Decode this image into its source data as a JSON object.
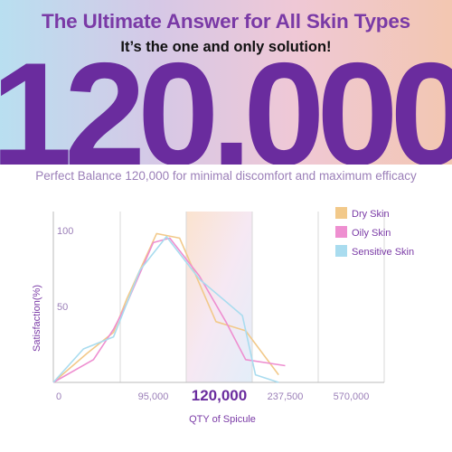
{
  "header": {
    "headline": "The Ultimate Answer for All Skin Types",
    "subheadline": "It’s the one and only solution!",
    "big_number": "120,000",
    "tagline": "Perfect Balance 120,000 for minimal discomfort and maximum efficacy"
  },
  "colors": {
    "accent": "#6a2c9e",
    "dry": "#f2c98a",
    "oily": "#ee8fd0",
    "sensitive": "#a9dcef"
  },
  "chart_data": {
    "type": "line",
    "title": "",
    "xlabel": "QTY of Spicule",
    "ylabel": "Satisfaction(%)",
    "x_categories": [
      "0",
      "95,000",
      "120,000",
      "237,500",
      "570,000"
    ],
    "highlight_category": "120,000",
    "ylim": [
      0,
      100
    ],
    "yticks": [
      "50",
      "100"
    ],
    "legend_position": "top-right",
    "series": [
      {
        "name": "Dry Skin",
        "color": "#f2c98a",
        "points": [
          [
            0,
            0
          ],
          [
            0.5,
            19
          ],
          [
            0.9,
            33
          ],
          [
            1.1,
            55
          ],
          [
            1.55,
            98
          ],
          [
            1.9,
            95
          ],
          [
            2.3,
            55
          ],
          [
            2.45,
            40
          ],
          [
            2.9,
            34
          ],
          [
            3.4,
            5
          ]
        ]
      },
      {
        "name": "Oily Skin",
        "color": "#ee8fd0",
        "points": [
          [
            0,
            0
          ],
          [
            0.6,
            15
          ],
          [
            0.9,
            35
          ],
          [
            1.1,
            52
          ],
          [
            1.5,
            92
          ],
          [
            1.75,
            95
          ],
          [
            2.2,
            70
          ],
          [
            2.6,
            40
          ],
          [
            2.9,
            15
          ],
          [
            3.5,
            11
          ]
        ]
      },
      {
        "name": "Sensitive Skin",
        "color": "#a9dcef",
        "points": [
          [
            0,
            0
          ],
          [
            0.45,
            22
          ],
          [
            0.9,
            30
          ],
          [
            1.3,
            74
          ],
          [
            1.7,
            96
          ],
          [
            2.2,
            68
          ],
          [
            2.85,
            44
          ],
          [
            3.05,
            5
          ],
          [
            3.4,
            0
          ]
        ]
      }
    ]
  }
}
